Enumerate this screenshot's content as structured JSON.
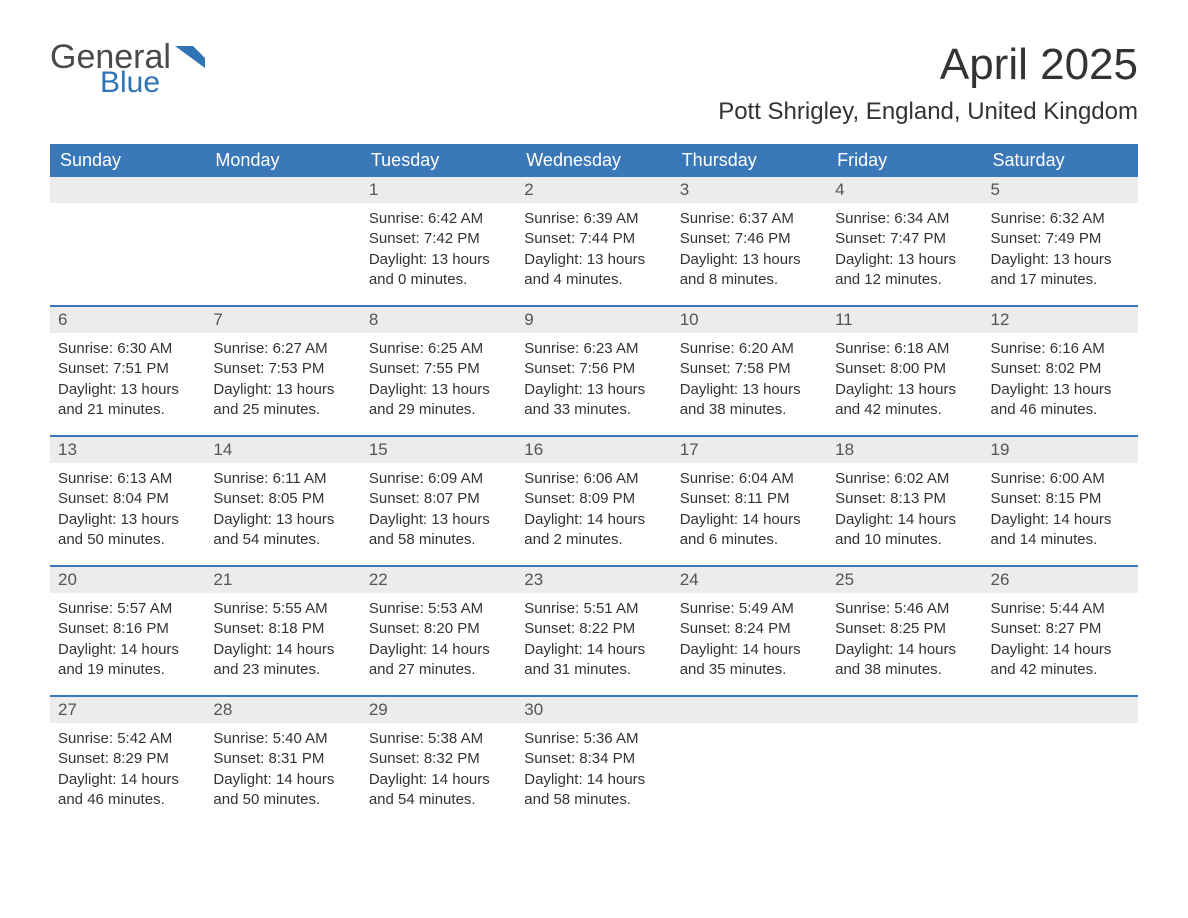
{
  "brand": {
    "word1": "General",
    "word2": "Blue",
    "flag_color": "#2f74b5"
  },
  "title": "April 2025",
  "location": "Pott Shrigley, England, United Kingdom",
  "colors": {
    "header_bg": "#3a78b8",
    "header_fg": "#ffffff",
    "strip_bg": "#ececec",
    "rule": "#3a78b8",
    "text": "#333333",
    "bg": "#ffffff"
  },
  "daysOfWeek": [
    "Sunday",
    "Monday",
    "Tuesday",
    "Wednesday",
    "Thursday",
    "Friday",
    "Saturday"
  ],
  "labels": {
    "sunrise": "Sunrise:",
    "sunset": "Sunset:",
    "daylight": "Daylight:"
  },
  "weeks": [
    [
      null,
      null,
      {
        "n": "1",
        "sunrise": "6:42 AM",
        "sunset": "7:42 PM",
        "dl1": "13 hours",
        "dl2": "and 0 minutes."
      },
      {
        "n": "2",
        "sunrise": "6:39 AM",
        "sunset": "7:44 PM",
        "dl1": "13 hours",
        "dl2": "and 4 minutes."
      },
      {
        "n": "3",
        "sunrise": "6:37 AM",
        "sunset": "7:46 PM",
        "dl1": "13 hours",
        "dl2": "and 8 minutes."
      },
      {
        "n": "4",
        "sunrise": "6:34 AM",
        "sunset": "7:47 PM",
        "dl1": "13 hours",
        "dl2": "and 12 minutes."
      },
      {
        "n": "5",
        "sunrise": "6:32 AM",
        "sunset": "7:49 PM",
        "dl1": "13 hours",
        "dl2": "and 17 minutes."
      }
    ],
    [
      {
        "n": "6",
        "sunrise": "6:30 AM",
        "sunset": "7:51 PM",
        "dl1": "13 hours",
        "dl2": "and 21 minutes."
      },
      {
        "n": "7",
        "sunrise": "6:27 AM",
        "sunset": "7:53 PM",
        "dl1": "13 hours",
        "dl2": "and 25 minutes."
      },
      {
        "n": "8",
        "sunrise": "6:25 AM",
        "sunset": "7:55 PM",
        "dl1": "13 hours",
        "dl2": "and 29 minutes."
      },
      {
        "n": "9",
        "sunrise": "6:23 AM",
        "sunset": "7:56 PM",
        "dl1": "13 hours",
        "dl2": "and 33 minutes."
      },
      {
        "n": "10",
        "sunrise": "6:20 AM",
        "sunset": "7:58 PM",
        "dl1": "13 hours",
        "dl2": "and 38 minutes."
      },
      {
        "n": "11",
        "sunrise": "6:18 AM",
        "sunset": "8:00 PM",
        "dl1": "13 hours",
        "dl2": "and 42 minutes."
      },
      {
        "n": "12",
        "sunrise": "6:16 AM",
        "sunset": "8:02 PM",
        "dl1": "13 hours",
        "dl2": "and 46 minutes."
      }
    ],
    [
      {
        "n": "13",
        "sunrise": "6:13 AM",
        "sunset": "8:04 PM",
        "dl1": "13 hours",
        "dl2": "and 50 minutes."
      },
      {
        "n": "14",
        "sunrise": "6:11 AM",
        "sunset": "8:05 PM",
        "dl1": "13 hours",
        "dl2": "and 54 minutes."
      },
      {
        "n": "15",
        "sunrise": "6:09 AM",
        "sunset": "8:07 PM",
        "dl1": "13 hours",
        "dl2": "and 58 minutes."
      },
      {
        "n": "16",
        "sunrise": "6:06 AM",
        "sunset": "8:09 PM",
        "dl1": "14 hours",
        "dl2": "and 2 minutes."
      },
      {
        "n": "17",
        "sunrise": "6:04 AM",
        "sunset": "8:11 PM",
        "dl1": "14 hours",
        "dl2": "and 6 minutes."
      },
      {
        "n": "18",
        "sunrise": "6:02 AM",
        "sunset": "8:13 PM",
        "dl1": "14 hours",
        "dl2": "and 10 minutes."
      },
      {
        "n": "19",
        "sunrise": "6:00 AM",
        "sunset": "8:15 PM",
        "dl1": "14 hours",
        "dl2": "and 14 minutes."
      }
    ],
    [
      {
        "n": "20",
        "sunrise": "5:57 AM",
        "sunset": "8:16 PM",
        "dl1": "14 hours",
        "dl2": "and 19 minutes."
      },
      {
        "n": "21",
        "sunrise": "5:55 AM",
        "sunset": "8:18 PM",
        "dl1": "14 hours",
        "dl2": "and 23 minutes."
      },
      {
        "n": "22",
        "sunrise": "5:53 AM",
        "sunset": "8:20 PM",
        "dl1": "14 hours",
        "dl2": "and 27 minutes."
      },
      {
        "n": "23",
        "sunrise": "5:51 AM",
        "sunset": "8:22 PM",
        "dl1": "14 hours",
        "dl2": "and 31 minutes."
      },
      {
        "n": "24",
        "sunrise": "5:49 AM",
        "sunset": "8:24 PM",
        "dl1": "14 hours",
        "dl2": "and 35 minutes."
      },
      {
        "n": "25",
        "sunrise": "5:46 AM",
        "sunset": "8:25 PM",
        "dl1": "14 hours",
        "dl2": "and 38 minutes."
      },
      {
        "n": "26",
        "sunrise": "5:44 AM",
        "sunset": "8:27 PM",
        "dl1": "14 hours",
        "dl2": "and 42 minutes."
      }
    ],
    [
      {
        "n": "27",
        "sunrise": "5:42 AM",
        "sunset": "8:29 PM",
        "dl1": "14 hours",
        "dl2": "and 46 minutes."
      },
      {
        "n": "28",
        "sunrise": "5:40 AM",
        "sunset": "8:31 PM",
        "dl1": "14 hours",
        "dl2": "and 50 minutes."
      },
      {
        "n": "29",
        "sunrise": "5:38 AM",
        "sunset": "8:32 PM",
        "dl1": "14 hours",
        "dl2": "and 54 minutes."
      },
      {
        "n": "30",
        "sunrise": "5:36 AM",
        "sunset": "8:34 PM",
        "dl1": "14 hours",
        "dl2": "and 58 minutes."
      },
      null,
      null,
      null
    ]
  ]
}
